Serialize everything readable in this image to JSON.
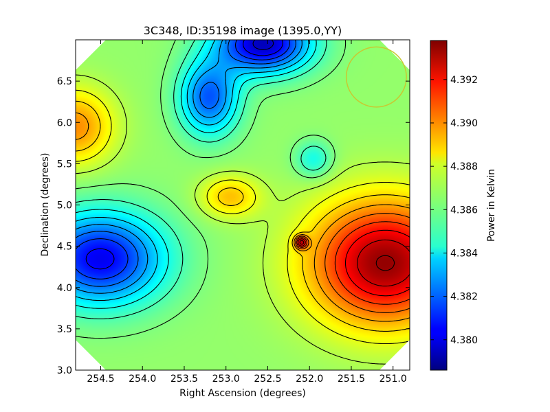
{
  "chart_data": {
    "type": "heatmap",
    "title": "3C348, ID:35198 image (1395.0,YY)",
    "xlabel": "Right Ascension (degrees)",
    "ylabel": "Declination (degrees)",
    "xlim": [
      254.8,
      250.8
    ],
    "ylim": [
      3.0,
      7.0
    ],
    "x_ticks": [
      "254.5",
      "254.0",
      "253.5",
      "253.0",
      "252.5",
      "252.0",
      "251.5",
      "251.0"
    ],
    "x_tick_values": [
      254.5,
      254.0,
      253.5,
      253.0,
      252.5,
      252.0,
      251.5,
      251.0
    ],
    "y_ticks": [
      "3.0",
      "3.5",
      "4.0",
      "4.5",
      "5.0",
      "5.5",
      "6.0",
      "6.5"
    ],
    "y_tick_values": [
      3.0,
      3.5,
      4.0,
      4.5,
      5.0,
      5.5,
      6.0,
      6.5
    ],
    "colorbar": {
      "label": "Power in Kelvin",
      "range": [
        4.3786,
        4.3938
      ],
      "ticks": [
        "4.380",
        "4.382",
        "4.384",
        "4.386",
        "4.388",
        "4.390",
        "4.392"
      ],
      "tick_values": [
        4.38,
        4.382,
        4.384,
        4.386,
        4.388,
        4.39,
        4.392
      ],
      "colormap": "jet"
    },
    "features": [
      {
        "kind": "min",
        "ra": 252.55,
        "dec": 6.95,
        "value": 4.3795
      },
      {
        "kind": "min",
        "ra": 253.2,
        "dec": 6.3,
        "value": 4.3818
      },
      {
        "kind": "min",
        "ra": 254.5,
        "dec": 4.35,
        "value": 4.3803
      },
      {
        "kind": "min",
        "ra": 251.95,
        "dec": 5.55,
        "value": 4.3845
      },
      {
        "kind": "max",
        "ra": 251.1,
        "dec": 4.3,
        "value": 4.3935
      },
      {
        "kind": "max",
        "ra": 254.8,
        "dec": 5.95,
        "value": 4.3898
      },
      {
        "kind": "max",
        "ra": 252.1,
        "dec": 4.55,
        "value": 4.3912
      },
      {
        "kind": "max",
        "ra": 252.95,
        "dec": 5.1,
        "value": 4.389
      }
    ],
    "marker_circle": {
      "ra": 251.2,
      "dec": 6.55,
      "radius_deg": 0.36,
      "color": "#c8c832"
    },
    "contour_color": "#000000"
  }
}
